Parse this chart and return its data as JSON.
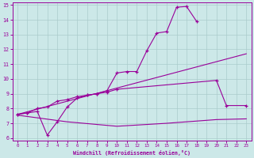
{
  "color": "#990099",
  "bg_color": "#cce8e8",
  "grid_color": "#aacccc",
  "xlabel": "Windchill (Refroidissement éolien,°C)",
  "ylim": [
    6,
    15
  ],
  "xlim": [
    -0.5,
    23.5
  ],
  "yticks": [
    6,
    7,
    8,
    9,
    10,
    11,
    12,
    13,
    14,
    15
  ],
  "xticks": [
    0,
    1,
    2,
    3,
    4,
    5,
    6,
    7,
    8,
    9,
    10,
    11,
    12,
    13,
    14,
    15,
    16,
    17,
    18,
    19,
    20,
    21,
    22,
    23
  ],
  "line1_x": [
    0,
    1,
    2,
    3,
    4,
    5,
    6,
    7,
    8,
    9,
    10,
    11,
    12,
    13,
    14,
    15,
    16,
    17,
    18
  ],
  "line1_y": [
    7.6,
    7.7,
    8.0,
    8.1,
    8.5,
    8.6,
    8.8,
    8.9,
    9.0,
    9.2,
    10.4,
    10.5,
    10.5,
    11.9,
    13.1,
    13.2,
    14.85,
    14.9,
    13.9
  ],
  "line2_x": [
    0,
    23
  ],
  "line2_y": [
    7.6,
    11.7
  ],
  "line3_x": [
    0,
    1,
    2,
    3,
    4,
    5,
    6,
    7,
    8,
    9,
    10,
    20,
    21,
    23
  ],
  "line3_y": [
    7.6,
    7.7,
    7.8,
    6.2,
    7.1,
    8.1,
    8.7,
    8.9,
    9.0,
    9.1,
    9.3,
    9.9,
    8.2,
    8.2
  ],
  "line4_x": [
    0,
    5,
    10,
    15,
    20,
    23
  ],
  "line4_y": [
    7.55,
    7.1,
    6.8,
    7.0,
    7.25,
    7.3
  ]
}
